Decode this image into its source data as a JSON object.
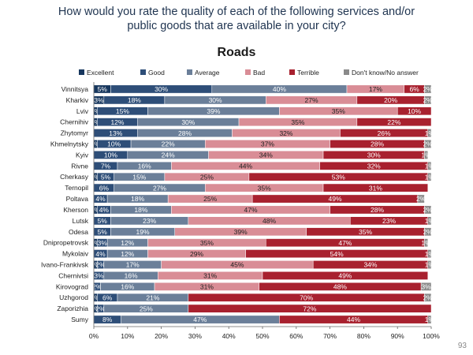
{
  "header": {
    "title_line1": "How would you rate the quality of each of the following services and/or",
    "title_line2": "public goods that are available in your city?"
  },
  "page_number": "93",
  "chart_data": {
    "type": "bar",
    "orientation": "horizontal",
    "stacked": true,
    "title": "Roads",
    "xlim": [
      0,
      100
    ],
    "xticks": [
      "0%",
      "10%",
      "20%",
      "30%",
      "40%",
      "50%",
      "60%",
      "70%",
      "80%",
      "90%",
      "100%"
    ],
    "legend_position": "top",
    "categories": [
      "Vinnitsya",
      "Kharkiv",
      "Lviv",
      "Chernihiv",
      "Zhytomyr",
      "Khmelnytsky",
      "Kyiv",
      "Rivne",
      "Cherkasy",
      "Ternopil",
      "Poltava",
      "Kherson",
      "Lutsk",
      "Odesa",
      "Dnipropetrovsk",
      "Mykolaiv",
      "Ivano-Frankivsk",
      "Chernivtsi",
      "Kirovograd",
      "Uzhgorod",
      "Zaporizhia",
      "Sumy"
    ],
    "series": [
      {
        "name": "Excellent",
        "color": "#17375e",
        "values": [
          5,
          3,
          1,
          1,
          0,
          1,
          0,
          0,
          1,
          0,
          0,
          1,
          0,
          0,
          1,
          0,
          1,
          0,
          0,
          1,
          1,
          0
        ],
        "labels": [
          "5%",
          "3%",
          "1%",
          "1%",
          "",
          "1%",
          "",
          "",
          "1%",
          "",
          "",
          "1%",
          "",
          "",
          "1%",
          "",
          "1%",
          "",
          "",
          "1%",
          "1%",
          ""
        ]
      },
      {
        "name": "Good",
        "color": "#2e4e78",
        "values": [
          30,
          18,
          15,
          12,
          13,
          10,
          10,
          7,
          5,
          6,
          4,
          4,
          5,
          5,
          3,
          4,
          2,
          3,
          2,
          6,
          2,
          8
        ],
        "labels": [
          "30%",
          "18%",
          "15%",
          "12%",
          "13%",
          "10%",
          "10%",
          "7%",
          "5%",
          "6%",
          "4%",
          "4%",
          "5%",
          "5%",
          "3%",
          "4%",
          "2%",
          "3%",
          "2%",
          "6%",
          "2%",
          "8%"
        ]
      },
      {
        "name": "Average",
        "color": "#6b7f99",
        "values": [
          40,
          30,
          39,
          30,
          28,
          22,
          24,
          16,
          15,
          27,
          18,
          18,
          23,
          19,
          12,
          12,
          17,
          16,
          16,
          21,
          25,
          47
        ],
        "labels": [
          "40%",
          "30%",
          "39%",
          "30%",
          "28%",
          "22%",
          "24%",
          "16%",
          "15%",
          "27%",
          "18%",
          "18%",
          "23%",
          "19%",
          "12%",
          "12%",
          "17%",
          "16%",
          "16%",
          "21%",
          "25%",
          "47%"
        ]
      },
      {
        "name": "Bad",
        "color": "#d98d96",
        "values": [
          17,
          27,
          35,
          35,
          32,
          37,
          34,
          44,
          25,
          35,
          25,
          47,
          48,
          39,
          35,
          29,
          45,
          31,
          31,
          0,
          0,
          0
        ],
        "labels": [
          "17%",
          "27%",
          "35%",
          "35%",
          "32%",
          "37%",
          "34%",
          "44%",
          "25%",
          "35%",
          "25%",
          "47%",
          "48%",
          "39%",
          "35%",
          "29%",
          "45%",
          "31%",
          "31%",
          "",
          "",
          ""
        ]
      },
      {
        "name": "Terrible",
        "color": "#a8212f",
        "values": [
          6,
          20,
          10,
          22,
          26,
          28,
          30,
          32,
          53,
          31,
          49,
          28,
          23,
          35,
          47,
          54,
          34,
          49,
          48,
          70,
          72,
          44
        ],
        "labels": [
          "6%",
          "20%",
          "10%",
          "22%",
          "26%",
          "28%",
          "30%",
          "32%",
          "53%",
          "31%",
          "49%",
          "28%",
          "23%",
          "35%",
          "47%",
          "54%",
          "34%",
          "49%",
          "48%",
          "70%",
          "72%",
          "44%"
        ]
      },
      {
        "name": "Don't know/No answer",
        "color": "#8a8a8a",
        "values": [
          2,
          2,
          0,
          0,
          1,
          2,
          1,
          1,
          1,
          0,
          2,
          2,
          1,
          2,
          1,
          1,
          1,
          0,
          3,
          2,
          0,
          1
        ],
        "labels": [
          "2%",
          "2%",
          "",
          "",
          "1%",
          "2%",
          "1%",
          "1%",
          "1%",
          "",
          "2%",
          "2%",
          "1%",
          "2%",
          "1%",
          "1%",
          "1%",
          "",
          "3%",
          "2%",
          "",
          "1%"
        ]
      }
    ]
  }
}
